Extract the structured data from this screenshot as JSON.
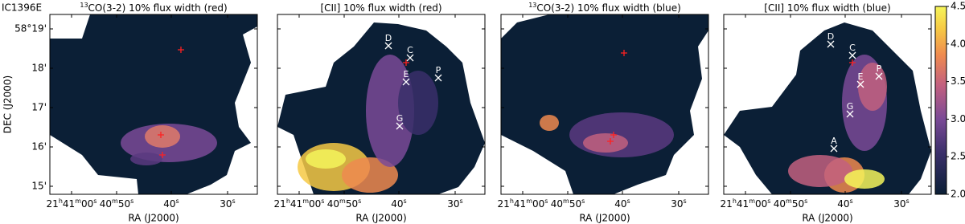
{
  "figure": {
    "object": "IC1396E",
    "ylabel": "DEC (J2000)",
    "panels": [
      {
        "title_sup": "13",
        "title": "CO(3-2) 10% flux width (red)",
        "xlabel": "RA (J2000)",
        "sources": []
      },
      {
        "title": "[CII] 10% flux width (red)",
        "xlabel": "RA (J2000)",
        "sources": [
          "D",
          "C",
          "P",
          "E",
          "G"
        ]
      },
      {
        "title_sup": "13",
        "title": "CO(3-2) 10% flux width (blue)",
        "xlabel": "RA (J2000)",
        "sources": []
      },
      {
        "title": "[CII] 10% flux width (blue)",
        "xlabel": "RA (J2000)",
        "sources": [
          "D",
          "C",
          "P",
          "E",
          "G",
          "A"
        ]
      }
    ],
    "ra_ticks": [
      [
        "21",
        "h",
        "41",
        "m",
        "00",
        "s"
      ],
      [
        "40",
        "m",
        "50",
        "s"
      ],
      [
        "40",
        "s"
      ],
      [
        "30",
        "s"
      ]
    ],
    "dec_ticks": [
      "58°19'",
      "18'",
      "17'",
      "16'",
      "15'"
    ],
    "colorbar": {
      "lim": [
        2,
        4.5
      ],
      "ticks": [
        {
          "value": 2,
          "label": "2.0"
        },
        {
          "value": 2.5,
          "label": "2.5"
        },
        {
          "value": 3,
          "label": "3.0"
        },
        {
          "value": 3.5,
          "label": "3.5"
        },
        {
          "value": 4,
          "label": "4.0"
        },
        {
          "value": 4.5,
          "label": "4.5"
        }
      ]
    }
  }
}
